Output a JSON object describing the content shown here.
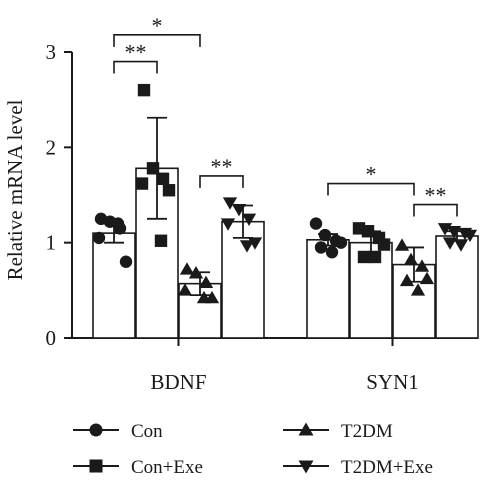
{
  "chart_data": {
    "type": "bar",
    "ylabel": "Relative mRNA level",
    "xlabel": "",
    "ylim": [
      0,
      3
    ],
    "yticks": [
      0,
      1,
      2,
      3
    ],
    "categories": [
      "BDNF",
      "SYN1"
    ],
    "grid": false,
    "legend_position": "bottom",
    "series": [
      {
        "name": "Con",
        "marker": "circle",
        "values": [
          1.1,
          1.03
        ],
        "errors": [
          0.1,
          0.06
        ],
        "points": [
          [
            1.25,
            1.22,
            1.15,
            1.05,
            0.8,
            1.2
          ],
          [
            1.2,
            1.08,
            1.02,
            1.0,
            0.95,
            0.9
          ]
        ]
      },
      {
        "name": "Con+Exe",
        "marker": "square",
        "values": [
          1.78,
          1.0
        ],
        "errors": [
          0.53,
          0.12
        ],
        "points": [
          [
            2.6,
            1.78,
            1.67,
            1.62,
            1.55,
            1.02
          ],
          [
            1.15,
            1.12,
            1.05,
            0.98,
            0.85,
            0.85
          ]
        ]
      },
      {
        "name": "T2DM",
        "marker": "triangle-up",
        "values": [
          0.57,
          0.77
        ],
        "errors": [
          0.12,
          0.18
        ],
        "points": [
          [
            0.72,
            0.68,
            0.58,
            0.5,
            0.42,
            0.42
          ],
          [
            0.97,
            0.82,
            0.75,
            0.62,
            0.6,
            0.5
          ]
        ]
      },
      {
        "name": "T2DM+Exe",
        "marker": "triangle-down",
        "values": [
          1.22,
          1.07
        ],
        "errors": [
          0.17,
          0.05
        ],
        "points": [
          [
            1.42,
            1.35,
            1.25,
            1.2,
            1.0,
            0.97
          ],
          [
            1.15,
            1.12,
            1.1,
            1.08,
            1.0,
            0.98
          ]
        ]
      }
    ],
    "annotations": [
      {
        "label": "**",
        "category": "BDNF",
        "from_series": 0,
        "to_series": 1,
        "y": 2.9
      },
      {
        "label": "*",
        "category": "BDNF",
        "from_series": 0,
        "to_series": 2,
        "y": 3.18
      },
      {
        "label": "**",
        "category": "BDNF",
        "from_series": 2,
        "to_series": 3,
        "y": 1.7
      },
      {
        "label": "*",
        "category": "SYN1",
        "from_series": 0,
        "to_series": 2,
        "y": 1.62
      },
      {
        "label": "**",
        "category": "SYN1",
        "from_series": 2,
        "to_series": 3,
        "y": 1.4
      }
    ]
  },
  "legend": {
    "items": [
      {
        "label": "Con",
        "marker": "circle"
      },
      {
        "label": "T2DM",
        "marker": "triangle-up"
      },
      {
        "label": "Con+Exe",
        "marker": "square"
      },
      {
        "label": "T2DM+Exe",
        "marker": "triangle-down"
      }
    ]
  },
  "colors": {
    "ink": "#1a1a1a",
    "bar_fill": "#ffffff"
  }
}
